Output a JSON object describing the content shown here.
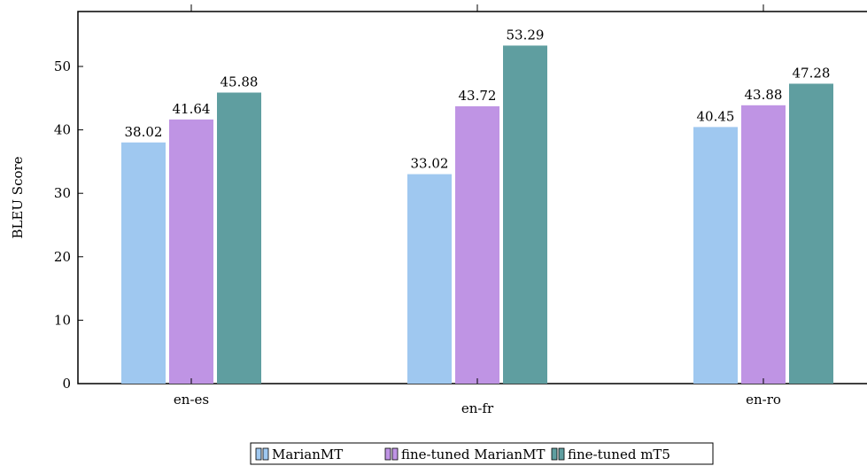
{
  "chart_data": {
    "type": "bar",
    "categories": [
      "en-es",
      "en-fr",
      "en-ro"
    ],
    "series": [
      {
        "name": "MarianMT",
        "values": [
          38.02,
          33.02,
          40.45
        ],
        "color": "#9fc8f0"
      },
      {
        "name": "fine-tuned MarianMT",
        "values": [
          41.64,
          43.72,
          43.88
        ],
        "color": "#bf94e4"
      },
      {
        "name": "fine-tuned mT5",
        "values": [
          45.88,
          53.29,
          47.28
        ],
        "color": "#5f9ea0"
      }
    ],
    "data_labels": [
      [
        "38.02",
        "33.02",
        "40.45"
      ],
      [
        "41.64",
        "43.72",
        "43.88"
      ],
      [
        "45.88",
        "53.29",
        "47.28"
      ]
    ],
    "title": "",
    "xlabel": "",
    "ylabel": "BLEU Score",
    "ylim": [
      0,
      50
    ],
    "yticks": [
      0,
      10,
      20,
      30,
      40,
      50
    ],
    "ytick_labels": [
      "0",
      "10",
      "20",
      "30",
      "40",
      "50"
    ],
    "grid": false,
    "legend_position": "bottom-center"
  }
}
